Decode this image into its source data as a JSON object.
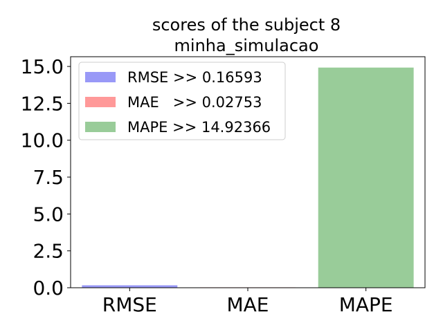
{
  "chart_data": {
    "type": "bar",
    "title_line1": "scores of the subject 8",
    "title_line2": "minha_simulacao",
    "xlabel": "",
    "ylabel": "",
    "categories": [
      "RMSE",
      "MAE",
      "MAPE"
    ],
    "values": [
      0.16593,
      0.02753,
      14.92366
    ],
    "colors": [
      "#9999f7",
      "#ff9999",
      "#99cc99"
    ],
    "ylim": [
      0,
      15.66
    ],
    "yticks": [
      0.0,
      2.5,
      5.0,
      7.5,
      10.0,
      12.5,
      15.0
    ],
    "ytick_labels": [
      "0.0",
      "2.5",
      "5.0",
      "7.5",
      "10.0",
      "12.5",
      "15.0"
    ],
    "legend_position": "upper-left",
    "legend": [
      {
        "label": "RMSE >> 0.16593",
        "color": "#9999f7"
      },
      {
        "label": "MAE   >> 0.02753",
        "color": "#ff9999"
      },
      {
        "label": "MAPE >> 14.92366",
        "color": "#99cc99"
      }
    ]
  }
}
